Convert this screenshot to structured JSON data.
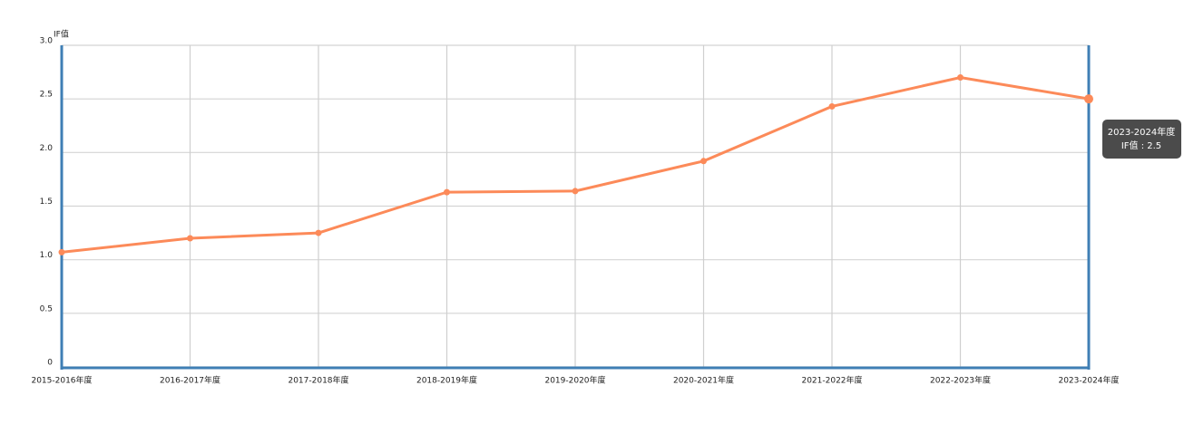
{
  "chart_data": {
    "type": "line",
    "y_label": "IF值",
    "categories": [
      "2015-2016年度",
      "2016-2017年度",
      "2017-2018年度",
      "2018-2019年度",
      "2019-2020年度",
      "2020-2021年度",
      "2021-2022年度",
      "2022-2023年度",
      "2023-2024年度"
    ],
    "series": [
      {
        "name": "IF值",
        "color": "#fc8a59",
        "values": [
          1.07,
          1.2,
          1.25,
          1.63,
          1.64,
          1.92,
          2.43,
          2.7,
          2.5
        ]
      }
    ],
    "ylim": [
      0,
      3
    ],
    "yticks": [
      0,
      0.5,
      {
        "value": 1,
        "label": "1.0"
      },
      1.5,
      {
        "value": 2,
        "label": "2.0"
      },
      2.5,
      {
        "value": 3,
        "label": "3.0"
      }
    ],
    "grid": true,
    "axis_color": "#3f7fb5",
    "tooltip": {
      "title": "2023-2024年度",
      "label": "IF值 : 2.5"
    }
  }
}
